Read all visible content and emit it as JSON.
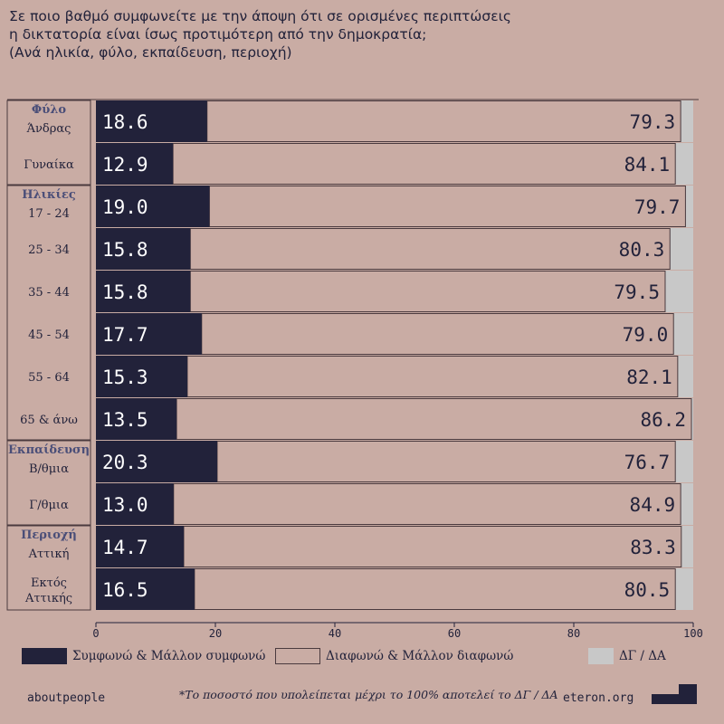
{
  "title_lines": [
    "Σε ποιο βαθμό συμφωνείτε με την άποψη ότι σε ορισμένες περιπτώσεις",
    "η δικτατορία είναι ίσως προτιμότερη από την δημοκρατία;",
    "(Ανά ηλικία, φύλο, εκπαίδευση, περιοχή)"
  ],
  "chart_data": {
    "type": "bar",
    "orientation": "horizontal",
    "stacked": true,
    "xlim": [
      0,
      100
    ],
    "xticks": [
      0,
      20,
      40,
      60,
      80,
      100
    ],
    "grid": false,
    "groups": [
      {
        "label": "Φύλο",
        "categories": [
          "Άνδρας",
          "Γυναίκα"
        ]
      },
      {
        "label": "Ηλικίες",
        "categories": [
          "17 - 24",
          "25 - 34",
          "35 - 44",
          "45 - 54",
          "55 - 64",
          "65 & άνω"
        ]
      },
      {
        "label": "Εκπαίδευση",
        "categories": [
          "Β/θμια",
          "Γ/θμια"
        ]
      },
      {
        "label": "Περιοχή",
        "categories": [
          "Αττική",
          "Εκτός Αττικής"
        ]
      }
    ],
    "categories": [
      "Άνδρας",
      "Γυναίκα",
      "17 - 24",
      "25 - 34",
      "35 - 44",
      "45 - 54",
      "55 - 64",
      "65 & άνω",
      "Β/θμια",
      "Γ/θμια",
      "Αττική",
      "Εκτός Αττικής"
    ],
    "series": [
      {
        "name": "Συμφωνώ & Μάλλον συμφωνώ",
        "color": "#22223a",
        "values": [
          18.6,
          12.9,
          19.0,
          15.8,
          15.8,
          17.7,
          15.3,
          13.5,
          20.3,
          13.0,
          14.7,
          16.5
        ]
      },
      {
        "name": "Διαφωνώ & Μάλλον διαφωνώ",
        "color": "#c9aca4",
        "values": [
          79.3,
          84.1,
          79.7,
          80.3,
          79.5,
          79.0,
          82.1,
          86.2,
          76.7,
          84.9,
          83.3,
          80.5
        ]
      },
      {
        "name": "ΔΓ / ΔΑ",
        "color": "#c8c8c8",
        "values": [
          2.1,
          3.0,
          1.3,
          3.9,
          4.7,
          3.3,
          2.6,
          0.3,
          3.0,
          2.1,
          2.0,
          3.0
        ]
      }
    ],
    "legend_position": "bottom"
  },
  "footer": {
    "left": "aboutpeople",
    "note": "*Το ποσοστό που υπολείπεται μέχρι το 100% αποτελεί το ΔΓ / ΔΑ",
    "right": "eteron.org"
  },
  "colors": {
    "background": "#c9aca4",
    "dark": "#22223a",
    "outline": "#4a3a3e",
    "light_gray": "#c8c8c8",
    "group_label": "#4a4e78"
  }
}
